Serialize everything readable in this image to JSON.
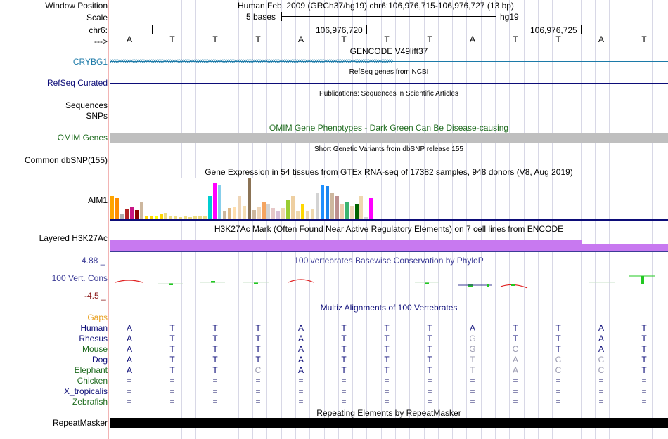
{
  "header": {
    "window_position_label": "Window Position",
    "scale_label": "Scale",
    "chrom_label": "chr6:",
    "strand_label": "--->",
    "assembly_position": "Human Feb. 2009 (GRCh37/hg19)   chr6:106,976,715-106,976,727 (13 bp)",
    "scale_text": "5 bases",
    "db": "hg19",
    "coord1": "106,976,720",
    "coord2": "106,976,725"
  },
  "dna_bases": [
    "A",
    "T",
    "T",
    "T",
    "A",
    "T",
    "T",
    "T",
    "A",
    "T",
    "T",
    "A",
    "T"
  ],
  "tracks": {
    "gencode": {
      "title": "GENCODE V49lift37",
      "gene_label": "CRYBG1",
      "color": "#1c7aa8"
    },
    "refseq": {
      "title": "RefSeq genes from NCBI",
      "label": "RefSeq Curated",
      "color": "#0c0c78"
    },
    "publications": {
      "title": "Publications: Sequences in Scientific Articles",
      "label1": "Sequences",
      "label2": "SNPs"
    },
    "omim": {
      "title": "OMIM Gene Phenotypes - Dark Green Can Be Disease-causing",
      "label": "OMIM Genes",
      "color": "#1e6b1e"
    },
    "dbsnp": {
      "title": "Short Genetic Variants from dbSNP release 155",
      "label": "Common dbSNP(155)"
    },
    "gtex": {
      "title": "Gene Expression in 54 tissues from GTEx RNA-seq of 17382 samples, 948 donors (V8, Aug 2019)",
      "label": "AIM1",
      "values": [
        0.55,
        0.5,
        0.12,
        0.25,
        0.3,
        0.22,
        0.42,
        0.08,
        0.07,
        0.08,
        0.13,
        0.15,
        0.07,
        0.06,
        0.05,
        0.06,
        0.05,
        0.07,
        0.06,
        0.07,
        0.55,
        0.85,
        0.8,
        0.18,
        0.27,
        0.3,
        0.55,
        0.32,
        0.98,
        0.22,
        0.3,
        0.4,
        0.35,
        0.27,
        0.18,
        0.27,
        0.45,
        0.55,
        0.2,
        0.35,
        0.2,
        0.25,
        0.62,
        0.8,
        0.78,
        0.62,
        0.55,
        0.36,
        0.4,
        0.32,
        0.36,
        0.55,
        0.05,
        0.5
      ],
      "colors": [
        "#ffa500",
        "#ff8c00",
        "#b0b0b0",
        "#b22222",
        "#c71585",
        "#8b0000",
        "#cdb79e",
        "#ffd700",
        "#ffd700",
        "#ffff00",
        "#ffd700",
        "#eedd82",
        "#eedd82",
        "#eedd82",
        "#eedd82",
        "#eedd82",
        "#eedd82",
        "#eedd82",
        "#eedd82",
        "#eedd82",
        "#00ced1",
        "#ff00ff",
        "#87ceeb",
        "#cdb79e",
        "#deb887",
        "#ffdead",
        "#eed5b7",
        "#f5deb3",
        "#8b7355",
        "#cdb79e",
        "#eed5b7",
        "#f4a460",
        "#d3d3d3",
        "#e6c8c8",
        "#d8bfd8",
        "#eed8ae",
        "#9acd32",
        "#eecfa1",
        "#eed8ae",
        "#ffd700",
        "#eed8ae",
        "#eed8ae",
        "#d3d3d3",
        "#1e90ff",
        "#1c86ee",
        "#cdb79e",
        "#bc8f8f",
        "#eecbad",
        "#3cb371",
        "#eed5b7",
        "#006400",
        "#eed8ae",
        "#d3d3d3",
        "#ff00ff"
      ]
    },
    "h3k27ac": {
      "title": "H3K27Ac Mark (Often Found Near Active Regulatory Elements) on 7 cell lines from ENCODE",
      "label": "Layered H3K27Ac",
      "color": "#c879f0"
    },
    "phylop": {
      "title": "100 vertebrates Basewise Conservation by PhyloP",
      "label": "100 Vert. Cons",
      "max": "4.88 _",
      "min": "-4.5 _",
      "color": "#3c3c96"
    },
    "multiz": {
      "title": "Multiz Alignments of 100 Vertebrates",
      "gaps_label": "Gaps",
      "species": [
        {
          "name": "Human",
          "color": "#0c0c78",
          "bases": [
            "A",
            "T",
            "T",
            "T",
            "A",
            "T",
            "T",
            "T",
            "A",
            "T",
            "T",
            "A",
            "T"
          ]
        },
        {
          "name": "Rhesus",
          "color": "#0c0c78",
          "bases": [
            "A",
            "T",
            "T",
            "T",
            "A",
            "T",
            "T",
            "T",
            "G",
            "T",
            "T",
            "A",
            "T"
          ]
        },
        {
          "name": "Mouse",
          "color": "#1e6b1e",
          "bases": [
            "A",
            "T",
            "T",
            "T",
            "A",
            "T",
            "T",
            "T",
            "G",
            "C",
            "T",
            "A",
            "T"
          ]
        },
        {
          "name": "Dog",
          "color": "#0c0c78",
          "bases": [
            "A",
            "T",
            "T",
            "T",
            "A",
            "T",
            "T",
            "T",
            "T",
            "A",
            "C",
            "C",
            "T"
          ]
        },
        {
          "name": "Elephant",
          "color": "#1e6b1e",
          "bases": [
            "A",
            "T",
            "T",
            "C",
            "A",
            "T",
            "T",
            "T",
            "T",
            "A",
            "C",
            "C",
            "T"
          ]
        },
        {
          "name": "Chicken",
          "color": "#1e6b1e",
          "bases": [
            "=",
            "=",
            "=",
            "=",
            "=",
            "=",
            "=",
            "=",
            "=",
            "=",
            "=",
            "=",
            "="
          ]
        },
        {
          "name": "X_tropicalis",
          "color": "#0c0c78",
          "bases": [
            "=",
            "=",
            "=",
            "=",
            "=",
            "=",
            "=",
            "=",
            "=",
            "=",
            "=",
            "=",
            "="
          ]
        },
        {
          "name": "Zebrafish",
          "color": "#1e6b1e",
          "bases": [
            "=",
            "=",
            "=",
            "=",
            "=",
            "=",
            "=",
            "=",
            "=",
            "=",
            "=",
            "=",
            "="
          ]
        }
      ]
    },
    "repeatmasker": {
      "title": "Repeating Elements by RepeatMasker",
      "label": "RepeatMasker"
    }
  }
}
